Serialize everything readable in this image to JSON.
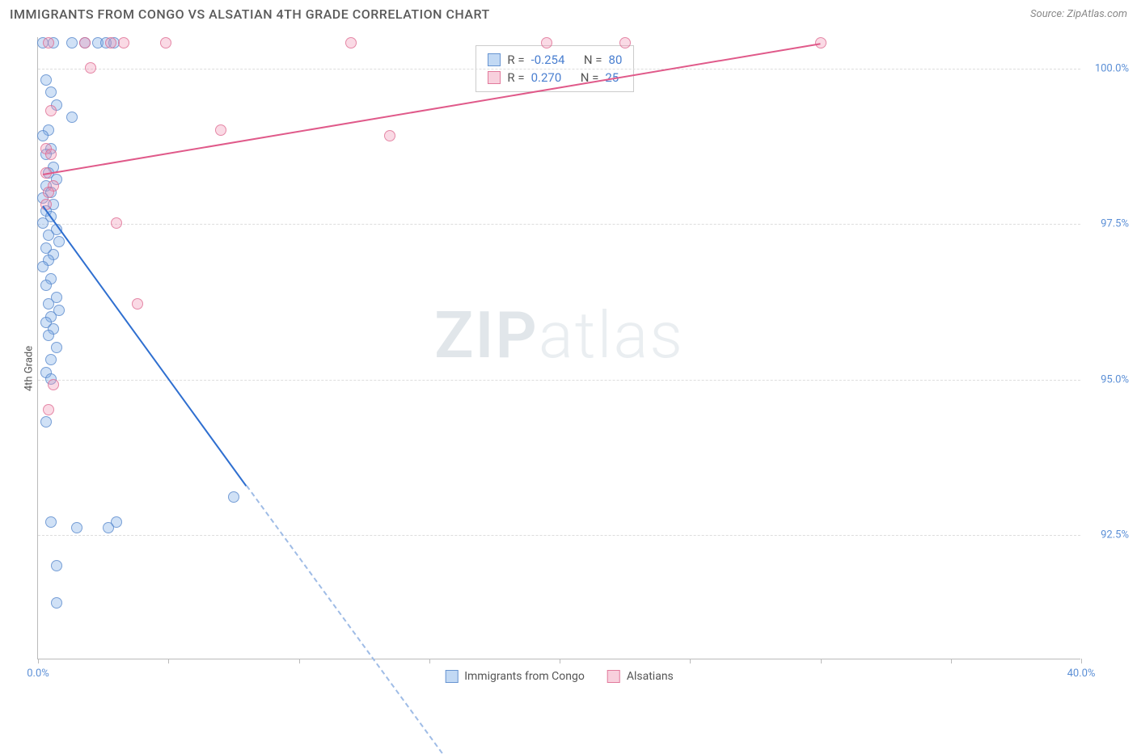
{
  "header": {
    "title": "IMMIGRANTS FROM CONGO VS ALSATIAN 4TH GRADE CORRELATION CHART",
    "source": "Source: ZipAtlas.com"
  },
  "axes": {
    "y_label": "4th Grade",
    "x_min": 0.0,
    "x_max": 40.0,
    "y_min": 90.5,
    "y_max": 100.5,
    "y_ticks": [
      {
        "v": 92.5,
        "label": "92.5%"
      },
      {
        "v": 95.0,
        "label": "95.0%"
      },
      {
        "v": 97.5,
        "label": "97.5%"
      },
      {
        "v": 100.0,
        "label": "100.0%"
      }
    ],
    "x_ticks": [
      0,
      5,
      10,
      15,
      20,
      25,
      30,
      35,
      40
    ],
    "x_labels": [
      {
        "v": 0.0,
        "label": "0.0%"
      },
      {
        "v": 40.0,
        "label": "40.0%"
      }
    ],
    "grid_color": "#dddddd",
    "axis_color": "#bbbbbb",
    "tick_label_color": "#5b8fd6"
  },
  "watermark": {
    "bold": "ZIP",
    "rest": "atlas"
  },
  "legend": {
    "series1_label": "Immigrants from Congo",
    "series2_label": "Alsatians"
  },
  "stats": {
    "r_label": "R =",
    "n_label": "N =",
    "series1": {
      "r": "-0.254",
      "n": "80"
    },
    "series2": {
      "r": " 0.270",
      "n": "25"
    }
  },
  "series": [
    {
      "id": "s1",
      "color_fill": "rgba(120,170,230,0.35)",
      "color_stroke": "rgba(80,130,200,0.7)",
      "trend_color": "#2f6fd0",
      "trend": {
        "x1": 0.2,
        "y1": 97.8,
        "x2": 8.0,
        "y2": 93.3,
        "dash_to_x": 15.5,
        "dash_to_y": 89.0
      },
      "points": [
        [
          0.2,
          100.4
        ],
        [
          0.6,
          100.4
        ],
        [
          1.3,
          100.4
        ],
        [
          1.8,
          100.4
        ],
        [
          2.3,
          100.4
        ],
        [
          2.6,
          100.4
        ],
        [
          2.9,
          100.4
        ],
        [
          0.3,
          99.8
        ],
        [
          0.5,
          99.6
        ],
        [
          0.7,
          99.4
        ],
        [
          1.3,
          99.2
        ],
        [
          0.4,
          99.0
        ],
        [
          0.2,
          98.9
        ],
        [
          0.5,
          98.7
        ],
        [
          0.3,
          98.6
        ],
        [
          0.6,
          98.4
        ],
        [
          0.4,
          98.3
        ],
        [
          0.7,
          98.2
        ],
        [
          0.3,
          98.1
        ],
        [
          0.5,
          98.0
        ],
        [
          0.2,
          97.9
        ],
        [
          0.6,
          97.8
        ],
        [
          0.3,
          97.7
        ],
        [
          0.5,
          97.6
        ],
        [
          0.2,
          97.5
        ],
        [
          0.7,
          97.4
        ],
        [
          0.4,
          97.3
        ],
        [
          0.8,
          97.2
        ],
        [
          0.3,
          97.1
        ],
        [
          0.6,
          97.0
        ],
        [
          0.4,
          96.9
        ],
        [
          0.2,
          96.8
        ],
        [
          0.5,
          96.6
        ],
        [
          0.3,
          96.5
        ],
        [
          0.7,
          96.3
        ],
        [
          0.4,
          96.2
        ],
        [
          0.8,
          96.1
        ],
        [
          0.5,
          96.0
        ],
        [
          0.3,
          95.9
        ],
        [
          0.6,
          95.8
        ],
        [
          0.4,
          95.7
        ],
        [
          0.7,
          95.5
        ],
        [
          0.5,
          95.3
        ],
        [
          0.3,
          95.1
        ],
        [
          0.5,
          95.0
        ],
        [
          0.3,
          94.3
        ],
        [
          3.0,
          92.7
        ],
        [
          7.5,
          93.1
        ],
        [
          0.5,
          92.7
        ],
        [
          1.5,
          92.6
        ],
        [
          2.7,
          92.6
        ],
        [
          0.7,
          92.0
        ],
        [
          0.7,
          91.4
        ]
      ]
    },
    {
      "id": "s2",
      "color_fill": "rgba(240,150,180,0.35)",
      "color_stroke": "rgba(220,100,140,0.7)",
      "trend_color": "#e05a8a",
      "trend": {
        "x1": 0.2,
        "y1": 98.3,
        "x2": 30.0,
        "y2": 100.4
      },
      "points": [
        [
          0.4,
          100.4
        ],
        [
          1.8,
          100.4
        ],
        [
          2.8,
          100.4
        ],
        [
          3.3,
          100.4
        ],
        [
          4.9,
          100.4
        ],
        [
          12.0,
          100.4
        ],
        [
          19.5,
          100.4
        ],
        [
          22.5,
          100.4
        ],
        [
          30.0,
          100.4
        ],
        [
          2.0,
          100.0
        ],
        [
          0.5,
          99.3
        ],
        [
          0.3,
          98.7
        ],
        [
          0.5,
          98.6
        ],
        [
          0.3,
          98.3
        ],
        [
          0.6,
          98.1
        ],
        [
          0.4,
          98.0
        ],
        [
          0.3,
          97.8
        ],
        [
          7.0,
          99.0
        ],
        [
          13.5,
          98.9
        ],
        [
          3.0,
          97.5
        ],
        [
          3.8,
          96.2
        ],
        [
          0.6,
          94.9
        ],
        [
          0.4,
          94.5
        ]
      ]
    }
  ]
}
